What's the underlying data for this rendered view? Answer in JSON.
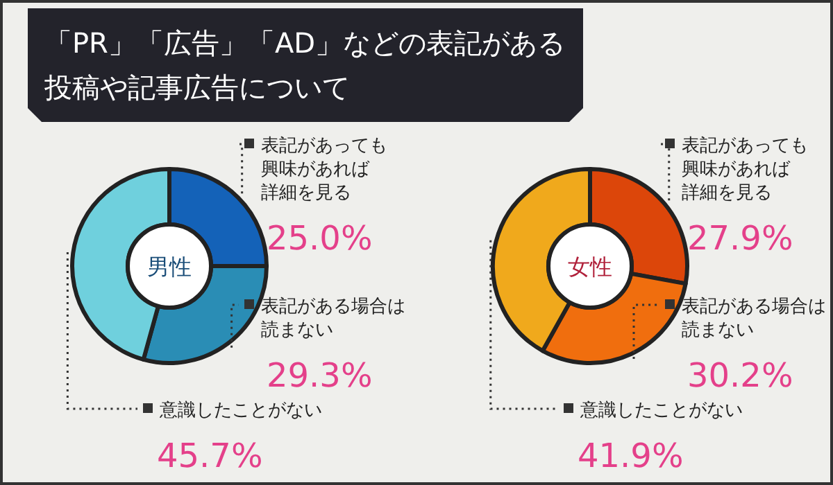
{
  "chart_data": [
    {
      "type": "donut",
      "title": "「PR」「広告」「AD」などの表記がある投稿や記事広告について",
      "annotations": [
        "男性"
      ],
      "categories": [
        "表記があっても興味があれば詳細を見る",
        "表記がある場合は読まない",
        "意識したことがない"
      ],
      "values": [
        25.0,
        29.3,
        45.7
      ],
      "value_labels": [
        "25.0%",
        "29.3%",
        "45.7%"
      ],
      "colors": [
        "#1462b8",
        "#2a8db5",
        "#6fd0dd"
      ]
    },
    {
      "type": "donut",
      "annotations": [
        "女性"
      ],
      "categories": [
        "表記があっても興味があれば詳細を見る",
        "表記がある場合は読まない",
        "意識したことがない"
      ],
      "values": [
        27.9,
        30.2,
        41.9
      ],
      "value_labels": [
        "27.9%",
        "30.2%",
        "41.9%"
      ],
      "colors": [
        "#dc460a",
        "#f06e0e",
        "#f0a91c"
      ]
    }
  ]
}
